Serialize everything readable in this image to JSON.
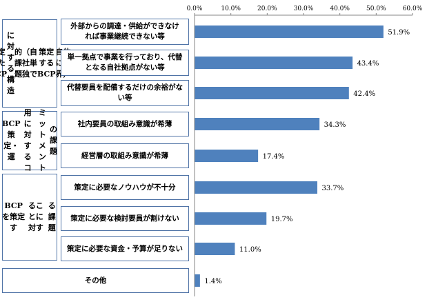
{
  "chart_data": {
    "type": "bar",
    "orientation": "horizontal",
    "xlim": [
      0,
      60
    ],
    "ticks": [
      "0.0%",
      "10.0%",
      "20.0%",
      "30.0%",
      "40.0%",
      "50.0%",
      "60.0%"
    ],
    "groups": [
      {
        "label": "策定したBCPに対する構造的課題（自社単独で策定するBCP自体に限界）",
        "lines": [
          "策定したBCP",
          "に対する構造",
          "的課題",
          "（自社単独で",
          "策定するBCP",
          "自体に限界）"
        ],
        "items": [
          0,
          1,
          2
        ]
      },
      {
        "label": "BCP策定・運用に対するコミットメントの課題",
        "lines": [
          "BCP策定・運",
          "用に対するコ",
          "ミットメント",
          "の課題"
        ],
        "items": [
          3,
          4
        ]
      },
      {
        "label": "BCPを策定することに対する課題",
        "lines": [
          "BCPを策定す",
          "ることに対す",
          "る課題"
        ],
        "items": [
          5,
          6,
          7
        ]
      }
    ],
    "categories": [
      {
        "lines": [
          "外部からの調達・供給ができなけ",
          "れば事業継続できない等"
        ],
        "value": 51.9,
        "label": "51.9%"
      },
      {
        "lines": [
          "単一拠点で事業を行っており、代替",
          "となる自社拠点がない等"
        ],
        "value": 43.4,
        "label": "43.4%"
      },
      {
        "lines": [
          "代替要員を配備するだけの余裕がな",
          "い等"
        ],
        "value": 42.4,
        "label": "42.4%"
      },
      {
        "lines": [
          "社内要員の取組み意識が希薄"
        ],
        "value": 34.3,
        "label": "34.3%"
      },
      {
        "lines": [
          "経営層の取組み意識が希薄"
        ],
        "value": 17.4,
        "label": "17.4%"
      },
      {
        "lines": [
          "策定に必要なノウハウが不十分"
        ],
        "value": 33.7,
        "label": "33.7%"
      },
      {
        "lines": [
          "策定に必要な検討要員が割けない"
        ],
        "value": 19.7,
        "label": "19.7%"
      },
      {
        "lines": [
          "策定に必要な資金・予算が足りない"
        ],
        "value": 11.0,
        "label": "11.0%"
      },
      {
        "lines": [
          "その他"
        ],
        "value": 1.4,
        "label": "1.4%"
      }
    ],
    "bar_color": "#4f81bd"
  }
}
